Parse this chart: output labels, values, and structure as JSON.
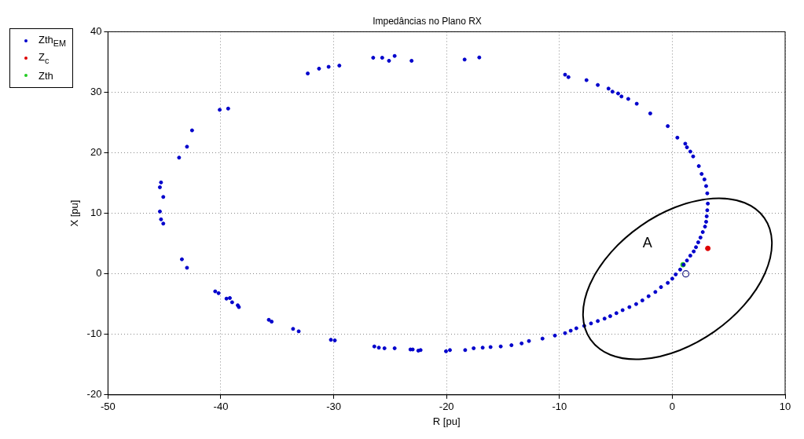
{
  "chart_data": {
    "type": "scatter",
    "title": "Impedâncias no Plano RX",
    "xlabel": "R [pu]",
    "ylabel": "X [pu]",
    "xlim": [
      -50,
      10
    ],
    "xticks": [
      -50,
      -40,
      -30,
      -20,
      -10,
      0,
      10
    ],
    "ylim": [
      -20,
      40
    ],
    "yticks": [
      -20,
      -10,
      0,
      10,
      20,
      30,
      40
    ],
    "grid": true,
    "legend": "left",
    "marker": "circle",
    "annotations": [
      "A"
    ],
    "series": [
      {
        "name": "Zth$_{EM}$",
        "color": "#0000cc",
        "x": [
          -45.4,
          -45.3,
          -45.1,
          -43.45,
          -43.0,
          -40.5,
          -40.2,
          -39.5,
          -39.2,
          -39.0,
          -38.5,
          -38.4,
          -35.75,
          -35.5,
          -33.6,
          -33.1,
          -30.25,
          -29.9,
          -26.4,
          -26.0,
          -25.5,
          -24.6,
          -23.2,
          -23.0,
          -22.5,
          -22.3,
          -20.05,
          -19.7,
          -18.35,
          -17.6,
          -16.8,
          -16.1,
          -15.2,
          -14.25,
          -13.35,
          -12.7,
          -11.5,
          -10.4,
          -9.5,
          -9.0,
          -8.5,
          -7.8,
          -7.2,
          -6.6,
          -6.0,
          -5.5,
          -4.95,
          -4.4,
          -3.8,
          -3.2,
          -2.65,
          -2.1,
          -1.5,
          -1.0,
          -0.4,
          0.0,
          0.3,
          0.7,
          1.0,
          1.3,
          1.6,
          1.9,
          2.1,
          2.3,
          2.5,
          2.7,
          2.9,
          3.0,
          3.05,
          3.1,
          3.15,
          3.1,
          3.0,
          2.85,
          2.6,
          2.35,
          1.85,
          1.6,
          1.3,
          1.15,
          0.45,
          -0.4,
          -1.95,
          -3.15,
          -3.9,
          -4.5,
          -4.8,
          -5.3,
          -5.65,
          -6.6,
          -7.6,
          -9.2,
          -9.5,
          -17.1,
          -18.4,
          -23.1,
          -24.6,
          -25.1,
          -25.7,
          -26.5,
          -29.5,
          -30.45,
          -31.3,
          -32.3,
          -39.35,
          -40.1,
          -42.55,
          -43.0,
          -43.7,
          -45.3,
          -45.4,
          -45.1
        ],
        "values": [
          10.3,
          9.0,
          8.3,
          2.4,
          1.0,
          -2.9,
          -3.2,
          -4.1,
          -4.0,
          -4.7,
          -5.2,
          -5.5,
          -7.6,
          -7.9,
          -9.1,
          -9.5,
          -10.9,
          -11.0,
          -12.0,
          -12.2,
          -12.3,
          -12.3,
          -12.5,
          -12.5,
          -12.7,
          -12.6,
          -12.8,
          -12.6,
          -12.6,
          -12.3,
          -12.2,
          -12.1,
          -12.0,
          -11.8,
          -11.5,
          -11.1,
          -10.7,
          -10.2,
          -9.8,
          -9.4,
          -9.0,
          -8.6,
          -8.2,
          -7.8,
          -7.4,
          -7.0,
          -6.5,
          -6.0,
          -5.5,
          -5.0,
          -4.4,
          -3.7,
          -3.0,
          -2.2,
          -1.5,
          -0.8,
          -0.1,
          0.7,
          1.5,
          2.2,
          3.0,
          3.7,
          4.4,
          5.2,
          6.0,
          6.9,
          7.8,
          8.6,
          9.5,
          10.5,
          11.6,
          13.3,
          14.5,
          15.6,
          16.5,
          17.8,
          19.4,
          20.2,
          20.9,
          21.5,
          22.5,
          24.4,
          26.5,
          28.1,
          28.9,
          29.3,
          29.8,
          30.1,
          30.6,
          31.2,
          32.0,
          32.5,
          32.9,
          35.75,
          35.4,
          35.2,
          36.0,
          35.2,
          35.7,
          35.7,
          34.4,
          34.2,
          33.9,
          33.1,
          27.3,
          27.1,
          23.7,
          21.0,
          19.2,
          15.1,
          14.3,
          12.7
        ]
      },
      {
        "name": "Z$_{c}$",
        "color": "#dd0000",
        "x": [
          3.15
        ],
        "values": [
          4.2
        ]
      },
      {
        "name": "Zth",
        "color": "#22cc22",
        "x": [
          0.95
        ],
        "values": [
          1.5
        ]
      },
      {
        "color": "#1a1a80",
        "x": [
          1.2
        ],
        "values": [
          0.0
        ]
      }
    ]
  }
}
